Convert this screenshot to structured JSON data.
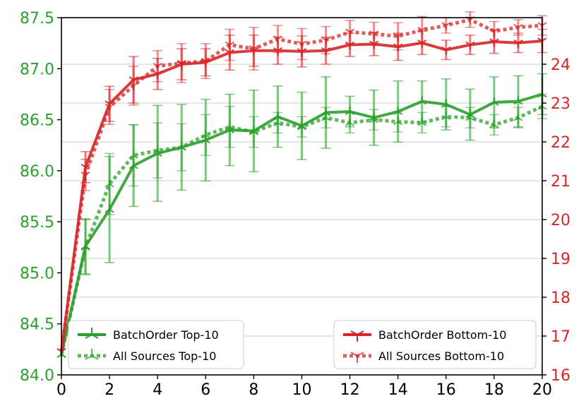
{
  "chart_data": {
    "type": "line",
    "x": [
      0,
      1,
      2,
      3,
      4,
      5,
      6,
      7,
      8,
      9,
      10,
      11,
      12,
      13,
      14,
      15,
      16,
      17,
      18,
      19,
      20
    ],
    "xlim": [
      0,
      20
    ],
    "x_ticks": [
      "0",
      "2",
      "4",
      "6",
      "8",
      "10",
      "12",
      "14",
      "16",
      "18",
      "20"
    ],
    "left_axis": {
      "ylim": [
        84.0,
        87.5
      ],
      "ticks": [
        "84.0",
        "84.5",
        "85.0",
        "85.5",
        "86.0",
        "86.5",
        "87.0",
        "87.5"
      ],
      "color": "#2ca02c"
    },
    "right_axis": {
      "ylim": [
        16,
        25.2
      ],
      "ticks": [
        "16",
        "17",
        "18",
        "19",
        "20",
        "21",
        "22",
        "23",
        "24"
      ],
      "color": "#d62728"
    },
    "grid": "horizontal, right axis",
    "series": [
      {
        "name": "BatchOrder Top-10",
        "axis": "left",
        "style": "solid",
        "color": "#2ca02c",
        "marker": "tri",
        "values": [
          84.2,
          85.26,
          85.62,
          86.05,
          86.17,
          86.23,
          86.3,
          86.4,
          86.39,
          86.53,
          86.44,
          86.57,
          86.58,
          86.52,
          86.58,
          86.68,
          86.65,
          86.55,
          86.67,
          86.68,
          86.75
        ],
        "errors": [
          0.0,
          0.27,
          0.52,
          0.4,
          0.47,
          0.42,
          0.4,
          0.35,
          0.4,
          0.3,
          0.33,
          0.35,
          0.15,
          0.27,
          0.3,
          0.2,
          0.25,
          0.25,
          0.25,
          0.25,
          0.2
        ]
      },
      {
        "name": "All Sources Top-10",
        "axis": "left",
        "style": "dotted",
        "color": "#2ca02c",
        "marker": "tri",
        "values": [
          84.2,
          85.25,
          85.87,
          86.15,
          86.2,
          86.23,
          86.35,
          86.43,
          86.38,
          86.47,
          86.43,
          86.52,
          86.47,
          86.5,
          86.48,
          86.47,
          86.53,
          86.52,
          86.45,
          86.52,
          86.63
        ],
        "errors": [
          0.0,
          0.27,
          0.3,
          0.3,
          0.27,
          0.23,
          0.2,
          0.2,
          0.15,
          0.1,
          0.1,
          0.1,
          0.1,
          0.1,
          0.1,
          0.1,
          0.1,
          0.1,
          0.1,
          0.1,
          0.12
        ]
      },
      {
        "name": "BatchOrder Bottom-10",
        "axis": "right",
        "style": "solid",
        "color": "#d62728",
        "marker": "y",
        "values": [
          16.6,
          21.35,
          22.98,
          23.6,
          23.75,
          24.0,
          24.05,
          24.3,
          24.35,
          24.35,
          24.33,
          24.35,
          24.5,
          24.52,
          24.45,
          24.55,
          24.37,
          24.5,
          24.58,
          24.55,
          24.6
        ],
        "errors": [
          0.0,
          0.4,
          0.45,
          0.6,
          0.4,
          0.4,
          0.35,
          0.45,
          0.4,
          0.35,
          0.4,
          0.35,
          0.3,
          0.3,
          0.35,
          0.3,
          0.25,
          0.25,
          0.3,
          0.25,
          0.3
        ]
      },
      {
        "name": "All Sources Bottom-10",
        "axis": "right",
        "style": "dotted",
        "color": "#d62728",
        "marker": "y",
        "values": [
          16.6,
          21.15,
          22.9,
          23.45,
          23.95,
          24.03,
          24.08,
          24.5,
          24.4,
          24.65,
          24.52,
          24.62,
          24.83,
          24.78,
          24.72,
          24.88,
          25.0,
          25.15,
          24.85,
          24.95,
          25.0
        ],
        "errors": [
          0.0,
          0.4,
          0.45,
          0.5,
          0.4,
          0.5,
          0.45,
          0.4,
          0.55,
          0.35,
          0.4,
          0.35,
          0.3,
          0.3,
          0.35,
          0.35,
          0.2,
          0.2,
          0.25,
          0.2,
          0.25
        ]
      }
    ],
    "legends": [
      {
        "placement": "lower-left",
        "entries": [
          "BatchOrder Top-10",
          "All Sources Top-10"
        ]
      },
      {
        "placement": "lower-right",
        "entries": [
          "BatchOrder Bottom-10",
          "All Sources Bottom-10"
        ]
      }
    ]
  }
}
